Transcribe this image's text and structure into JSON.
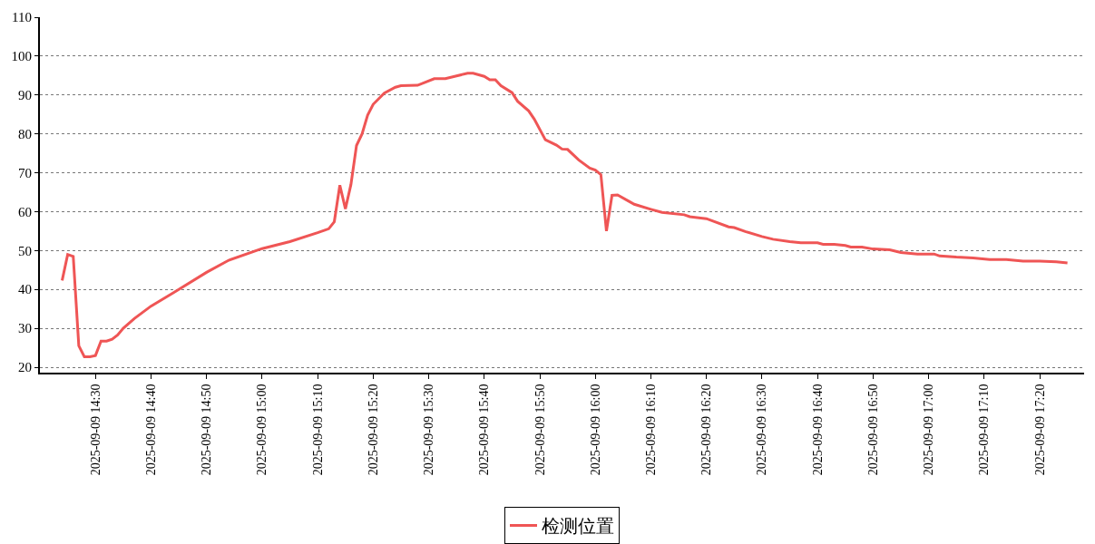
{
  "chart_data": {
    "type": "line",
    "x": [
      "2025-09-09T14:24",
      "2025-09-09T14:25",
      "2025-09-09T14:26",
      "2025-09-09T14:27",
      "2025-09-09T14:28",
      "2025-09-09T14:29",
      "2025-09-09T14:30",
      "2025-09-09T14:31",
      "2025-09-09T14:32",
      "2025-09-09T14:33",
      "2025-09-09T14:34",
      "2025-09-09T14:35",
      "2025-09-09T14:37",
      "2025-09-09T14:40",
      "2025-09-09T14:44",
      "2025-09-09T14:50",
      "2025-09-09T14:54",
      "2025-09-09T15:00",
      "2025-09-09T15:05",
      "2025-09-09T15:10",
      "2025-09-09T15:12",
      "2025-09-09T15:13",
      "2025-09-09T15:14",
      "2025-09-09T15:15",
      "2025-09-09T15:16",
      "2025-09-09T15:17",
      "2025-09-09T15:18",
      "2025-09-09T15:19",
      "2025-09-09T15:20",
      "2025-09-09T15:22",
      "2025-09-09T15:24",
      "2025-09-09T15:25",
      "2025-09-09T15:28",
      "2025-09-09T15:31",
      "2025-09-09T15:33",
      "2025-09-09T15:35",
      "2025-09-09T15:37",
      "2025-09-09T15:38",
      "2025-09-09T15:40",
      "2025-09-09T15:41",
      "2025-09-09T15:42",
      "2025-09-09T15:43",
      "2025-09-09T15:45",
      "2025-09-09T15:46",
      "2025-09-09T15:48",
      "2025-09-09T15:49",
      "2025-09-09T15:51",
      "2025-09-09T15:53",
      "2025-09-09T15:54",
      "2025-09-09T15:55",
      "2025-09-09T15:57",
      "2025-09-09T15:59",
      "2025-09-09T16:00",
      "2025-09-09T16:01",
      "2025-09-09T16:02",
      "2025-09-09T16:03",
      "2025-09-09T16:04",
      "2025-09-09T16:06",
      "2025-09-09T16:07",
      "2025-09-09T16:10",
      "2025-09-09T16:12",
      "2025-09-09T16:16",
      "2025-09-09T16:17",
      "2025-09-09T16:20",
      "2025-09-09T16:24",
      "2025-09-09T16:25",
      "2025-09-09T16:27",
      "2025-09-09T16:30",
      "2025-09-09T16:32",
      "2025-09-09T16:35",
      "2025-09-09T16:37",
      "2025-09-09T16:40",
      "2025-09-09T16:41",
      "2025-09-09T16:43",
      "2025-09-09T16:45",
      "2025-09-09T16:46",
      "2025-09-09T16:48",
      "2025-09-09T16:50",
      "2025-09-09T16:53",
      "2025-09-09T16:55",
      "2025-09-09T16:58",
      "2025-09-09T17:01",
      "2025-09-09T17:02",
      "2025-09-09T17:05",
      "2025-09-09T17:08",
      "2025-09-09T17:11",
      "2025-09-09T17:14",
      "2025-09-09T17:17",
      "2025-09-09T17:20",
      "2025-09-09T17:23",
      "2025-09-09T17:25"
    ],
    "series": [
      {
        "name": "检测位置",
        "color": "#ef5555",
        "values": [
          42.3,
          49,
          48.5,
          25.5,
          22.7,
          22.7,
          23,
          26.7,
          26.7,
          27.2,
          28.3,
          30,
          32.5,
          35.7,
          39.1,
          44.4,
          47.5,
          50.5,
          52.3,
          54.6,
          55.6,
          57.4,
          66.8,
          60.7,
          67,
          77,
          80,
          84.8,
          87.6,
          90.5,
          92,
          92.4,
          92.5,
          94.2,
          94.2,
          94.9,
          95.6,
          95.6,
          94.8,
          93.9,
          93.9,
          92.4,
          90.6,
          88.4,
          85.9,
          83.8,
          78.5,
          77.1,
          76.1,
          76,
          73.3,
          71.2,
          70.7,
          69.5,
          55,
          64.2,
          64.3,
          62.7,
          61.9,
          60.6,
          59.8,
          59.2,
          58.7,
          58.2,
          56.1,
          55.9,
          54.9,
          53.6,
          52.9,
          52.3,
          52,
          52,
          51.6,
          51.6,
          51.3,
          50.9,
          50.9,
          50.4,
          50.2,
          49.5,
          49.1,
          49.1,
          48.6,
          48.3,
          48.1,
          47.7,
          47.7,
          47.3,
          47.3,
          47.1,
          46.8
        ]
      }
    ],
    "xlim": [
      "2025-09-09T14:20",
      "2025-09-09T17:28"
    ],
    "xticks": [
      {
        "value": "2025-09-09T14:30",
        "label": "2025-09-09 14:30"
      },
      {
        "value": "2025-09-09T14:40",
        "label": "2025-09-09 14:40"
      },
      {
        "value": "2025-09-09T14:50",
        "label": "2025-09-09 14:50"
      },
      {
        "value": "2025-09-09T15:00",
        "label": "2025-09-09 15:00"
      },
      {
        "value": "2025-09-09T15:10",
        "label": "2025-09-09 15:10"
      },
      {
        "value": "2025-09-09T15:20",
        "label": "2025-09-09 15:20"
      },
      {
        "value": "2025-09-09T15:30",
        "label": "2025-09-09 15:30"
      },
      {
        "value": "2025-09-09T15:40",
        "label": "2025-09-09 15:40"
      },
      {
        "value": "2025-09-09T15:50",
        "label": "2025-09-09 15:50"
      },
      {
        "value": "2025-09-09T16:00",
        "label": "2025-09-09 16:00"
      },
      {
        "value": "2025-09-09T16:10",
        "label": "2025-09-09 16:10"
      },
      {
        "value": "2025-09-09T16:20",
        "label": "2025-09-09 16:20"
      },
      {
        "value": "2025-09-09T16:30",
        "label": "2025-09-09 16:30"
      },
      {
        "value": "2025-09-09T16:40",
        "label": "2025-09-09 16:40"
      },
      {
        "value": "2025-09-09T16:50",
        "label": "2025-09-09 16:50"
      },
      {
        "value": "2025-09-09T17:00",
        "label": "2025-09-09 17:00"
      },
      {
        "value": "2025-09-09T17:10",
        "label": "2025-09-09 17:10"
      },
      {
        "value": "2025-09-09T17:20",
        "label": "2025-09-09 17:20"
      }
    ],
    "ylim": [
      18.6,
      110
    ],
    "yticks": [
      20,
      30,
      40,
      50,
      60,
      70,
      80,
      90,
      100,
      110
    ],
    "grid": "y",
    "legend": "bottom",
    "marker": "none",
    "line_style": "solid"
  }
}
